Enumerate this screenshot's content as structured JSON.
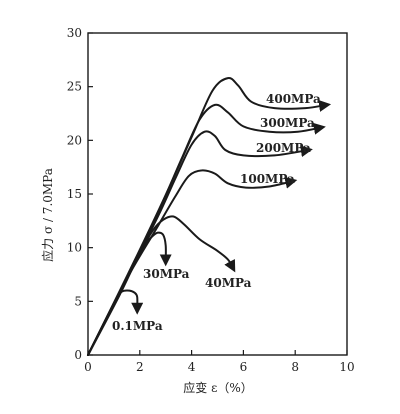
{
  "chart_data": {
    "type": "line",
    "xlabel": "应变 ε（%）",
    "ylabel": "应力 σ / 7.0MPa",
    "xlim": [
      0,
      10
    ],
    "ylim": [
      0,
      30
    ],
    "xticks": [
      "0",
      "2",
      "4",
      "6",
      "8",
      "10"
    ],
    "yticks": [
      "0",
      "5",
      "10",
      "15",
      "20",
      "25",
      "30"
    ],
    "grid": false,
    "legend": "none",
    "series": [
      {
        "name": "0.1MPa",
        "points": [
          [
            0,
            0
          ],
          [
            0.6,
            2.8
          ],
          [
            1.1,
            5.2
          ],
          [
            1.3,
            5.9
          ],
          [
            1.6,
            6.0
          ],
          [
            1.8,
            5.8
          ],
          [
            1.9,
            5.4
          ],
          [
            1.9,
            4.2
          ]
        ]
      },
      {
        "name": "30MPa",
        "points": [
          [
            0,
            0
          ],
          [
            1.0,
            4.8
          ],
          [
            1.8,
            8.6
          ],
          [
            2.2,
            10.3
          ],
          [
            2.5,
            11.1
          ],
          [
            2.7,
            11.4
          ],
          [
            2.9,
            11.2
          ],
          [
            3.0,
            10.2
          ],
          [
            3.0,
            8.7
          ]
        ]
      },
      {
        "name": "40MPa",
        "points": [
          [
            0,
            0
          ],
          [
            1.2,
            5.5
          ],
          [
            2.0,
            9.5
          ],
          [
            2.5,
            11.6
          ],
          [
            2.9,
            12.6
          ],
          [
            3.3,
            12.9
          ],
          [
            3.7,
            12.2
          ],
          [
            4.3,
            10.8
          ],
          [
            5.0,
            9.7
          ],
          [
            5.4,
            8.9
          ],
          [
            5.6,
            8.1
          ]
        ]
      },
      {
        "name": "100MPa",
        "points": [
          [
            0,
            0
          ],
          [
            1.5,
            7.1
          ],
          [
            2.6,
            11.6
          ],
          [
            3.4,
            14.9
          ],
          [
            3.9,
            16.7
          ],
          [
            4.4,
            17.2
          ],
          [
            4.9,
            16.9
          ],
          [
            5.4,
            16.0
          ],
          [
            6.1,
            15.6
          ],
          [
            7.0,
            15.7
          ],
          [
            7.9,
            16.2
          ]
        ]
      },
      {
        "name": "200MPa",
        "points": [
          [
            0,
            0
          ],
          [
            1.6,
            7.7
          ],
          [
            2.7,
            12.9
          ],
          [
            3.4,
            16.6
          ],
          [
            4.0,
            19.6
          ],
          [
            4.5,
            20.8
          ],
          [
            4.9,
            20.4
          ],
          [
            5.3,
            19.1
          ],
          [
            6.0,
            18.6
          ],
          [
            7.2,
            18.6
          ],
          [
            8.5,
            19.1
          ]
        ]
      },
      {
        "name": "300MPa",
        "points": [
          [
            0,
            0
          ],
          [
            1.7,
            8.2
          ],
          [
            2.8,
            13.8
          ],
          [
            3.6,
            18.2
          ],
          [
            4.3,
            21.9
          ],
          [
            4.9,
            23.3
          ],
          [
            5.4,
            22.6
          ],
          [
            6.0,
            21.3
          ],
          [
            7.0,
            20.8
          ],
          [
            8.1,
            20.8
          ],
          [
            9.0,
            21.2
          ]
        ]
      },
      {
        "name": "400MPa",
        "points": [
          [
            0,
            0
          ],
          [
            1.8,
            8.8
          ],
          [
            3.0,
            14.9
          ],
          [
            4.0,
            20.3
          ],
          [
            4.8,
            24.6
          ],
          [
            5.4,
            25.8
          ],
          [
            5.8,
            25.1
          ],
          [
            6.3,
            23.6
          ],
          [
            7.2,
            23.0
          ],
          [
            8.4,
            23.0
          ],
          [
            9.2,
            23.3
          ]
        ]
      }
    ],
    "labels": [
      "0.1MPa",
      "30MPa",
      "40MPa",
      "100MPa",
      "200MPa",
      "300MPa",
      "400MPa"
    ]
  }
}
